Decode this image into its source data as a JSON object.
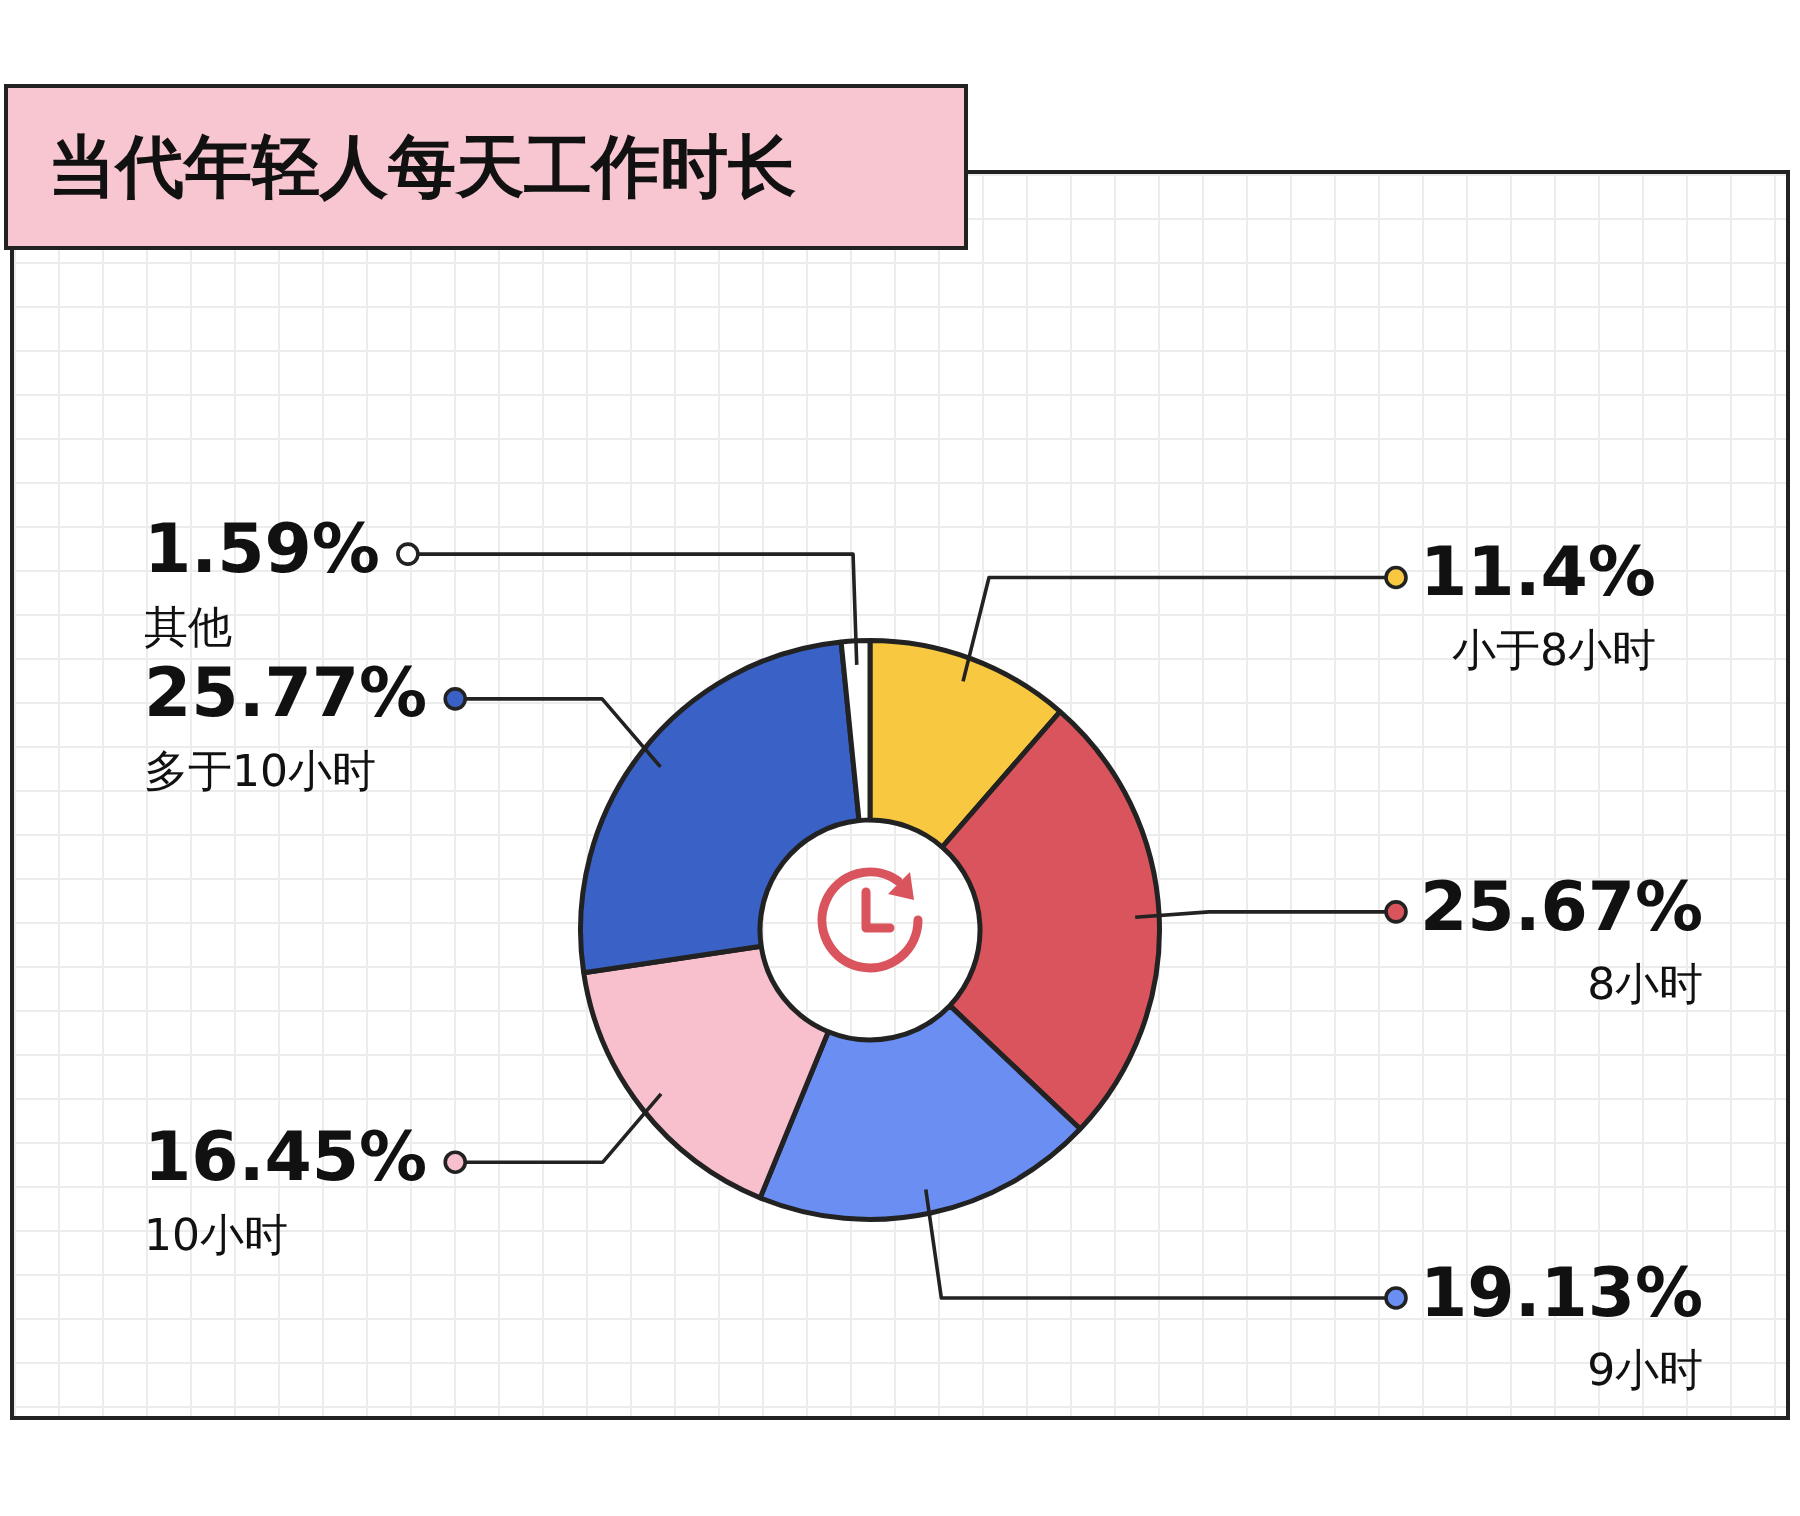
{
  "chart_data": {
    "type": "donut",
    "title": "当代年轻人每天工作时长",
    "categories": [
      "小于8小时",
      "8小时",
      "9小时",
      "10小时",
      "多于10小时",
      "其他"
    ],
    "values": [
      11.4,
      25.67,
      19.13,
      16.45,
      25.77,
      1.59
    ],
    "colors": [
      "#f7c840",
      "#d9545c",
      "#6a8ef2",
      "#f8bfcc",
      "#3a62c6",
      "#ffffff"
    ],
    "value_labels": [
      "11.4%",
      "25.67%",
      "19.13%",
      "16.45%",
      "25.77%",
      "1.59%"
    ]
  }
}
